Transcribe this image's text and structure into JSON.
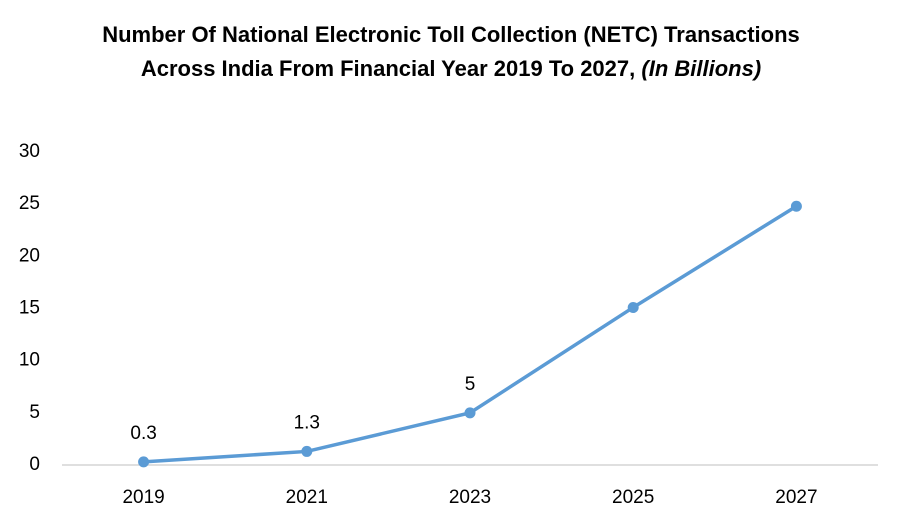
{
  "chart_data": {
    "type": "line",
    "title": "Number Of National Electronic Toll Collection (NETC) Transactions Across India From Financial Year 2019 To 2027,",
    "unit": "(In Billions)",
    "categories": [
      "2019",
      "2021",
      "2023",
      "2025",
      "2027"
    ],
    "series": [
      {
        "name": "NETC Transactions",
        "color": "#5b9bd5",
        "values": [
          0.3,
          1.3,
          5,
          15.1,
          24.8
        ],
        "value_labels": [
          "0.3",
          "1.3",
          "5",
          null,
          null
        ]
      }
    ],
    "ylim": [
      0,
      30
    ],
    "yticks": [
      0,
      5,
      10,
      15,
      20,
      25,
      30
    ],
    "grid": false,
    "legend": false
  }
}
